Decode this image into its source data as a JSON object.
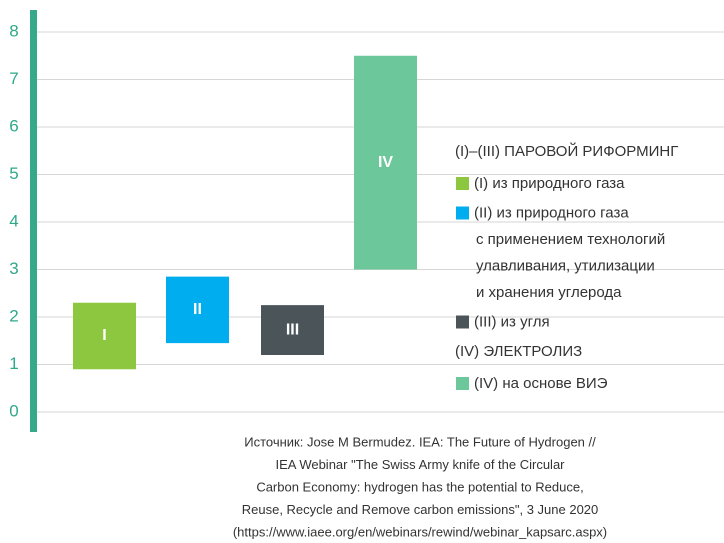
{
  "chart_data": {
    "type": "floating_bar",
    "categories": [
      "I",
      "II",
      "III",
      "IV"
    ],
    "low": [
      0.9,
      1.45,
      1.2,
      3.0
    ],
    "high": [
      2.3,
      2.85,
      2.25,
      7.5
    ],
    "colors": [
      "#8dc63f",
      "#00aeef",
      "#4b5559",
      "#6cc79a"
    ],
    "ylim": [
      0,
      8
    ],
    "yticks": [
      0,
      1,
      2,
      3,
      4,
      5,
      6,
      7,
      8
    ],
    "grid": true,
    "legend": [
      {
        "title": "(I)–(III) ПАРОВОЙ РИФОРМИНГ",
        "entries": [
          {
            "lines": [
              "(I) из природного газа"
            ]
          },
          {
            "lines": [
              "(II) из природного газа",
              "с применением технологий",
              "улавливания, утилизации",
              "и хранения углерода"
            ]
          },
          {
            "lines": [
              "(III) из угля"
            ]
          }
        ]
      },
      {
        "title": "(IV) ЭЛЕКТРОЛИЗ",
        "entries": [
          {
            "lines": [
              "(IV) на основе ВИЭ"
            ]
          }
        ]
      }
    ],
    "source": [
      "Источник: Jose M Bermudez. IEA: The Future of Hydrogen //",
      "IEA Webinar \"The Swiss Army knife of the Circular",
      "Carbon Economy: hydrogen has the potential to Reduce,",
      "Reuse, Recycle and Remove carbon emissions\", 3 June 2020",
      "(https://www.iaee.org/en/webinars/rewind/webinar_kapsarc.aspx)"
    ]
  }
}
